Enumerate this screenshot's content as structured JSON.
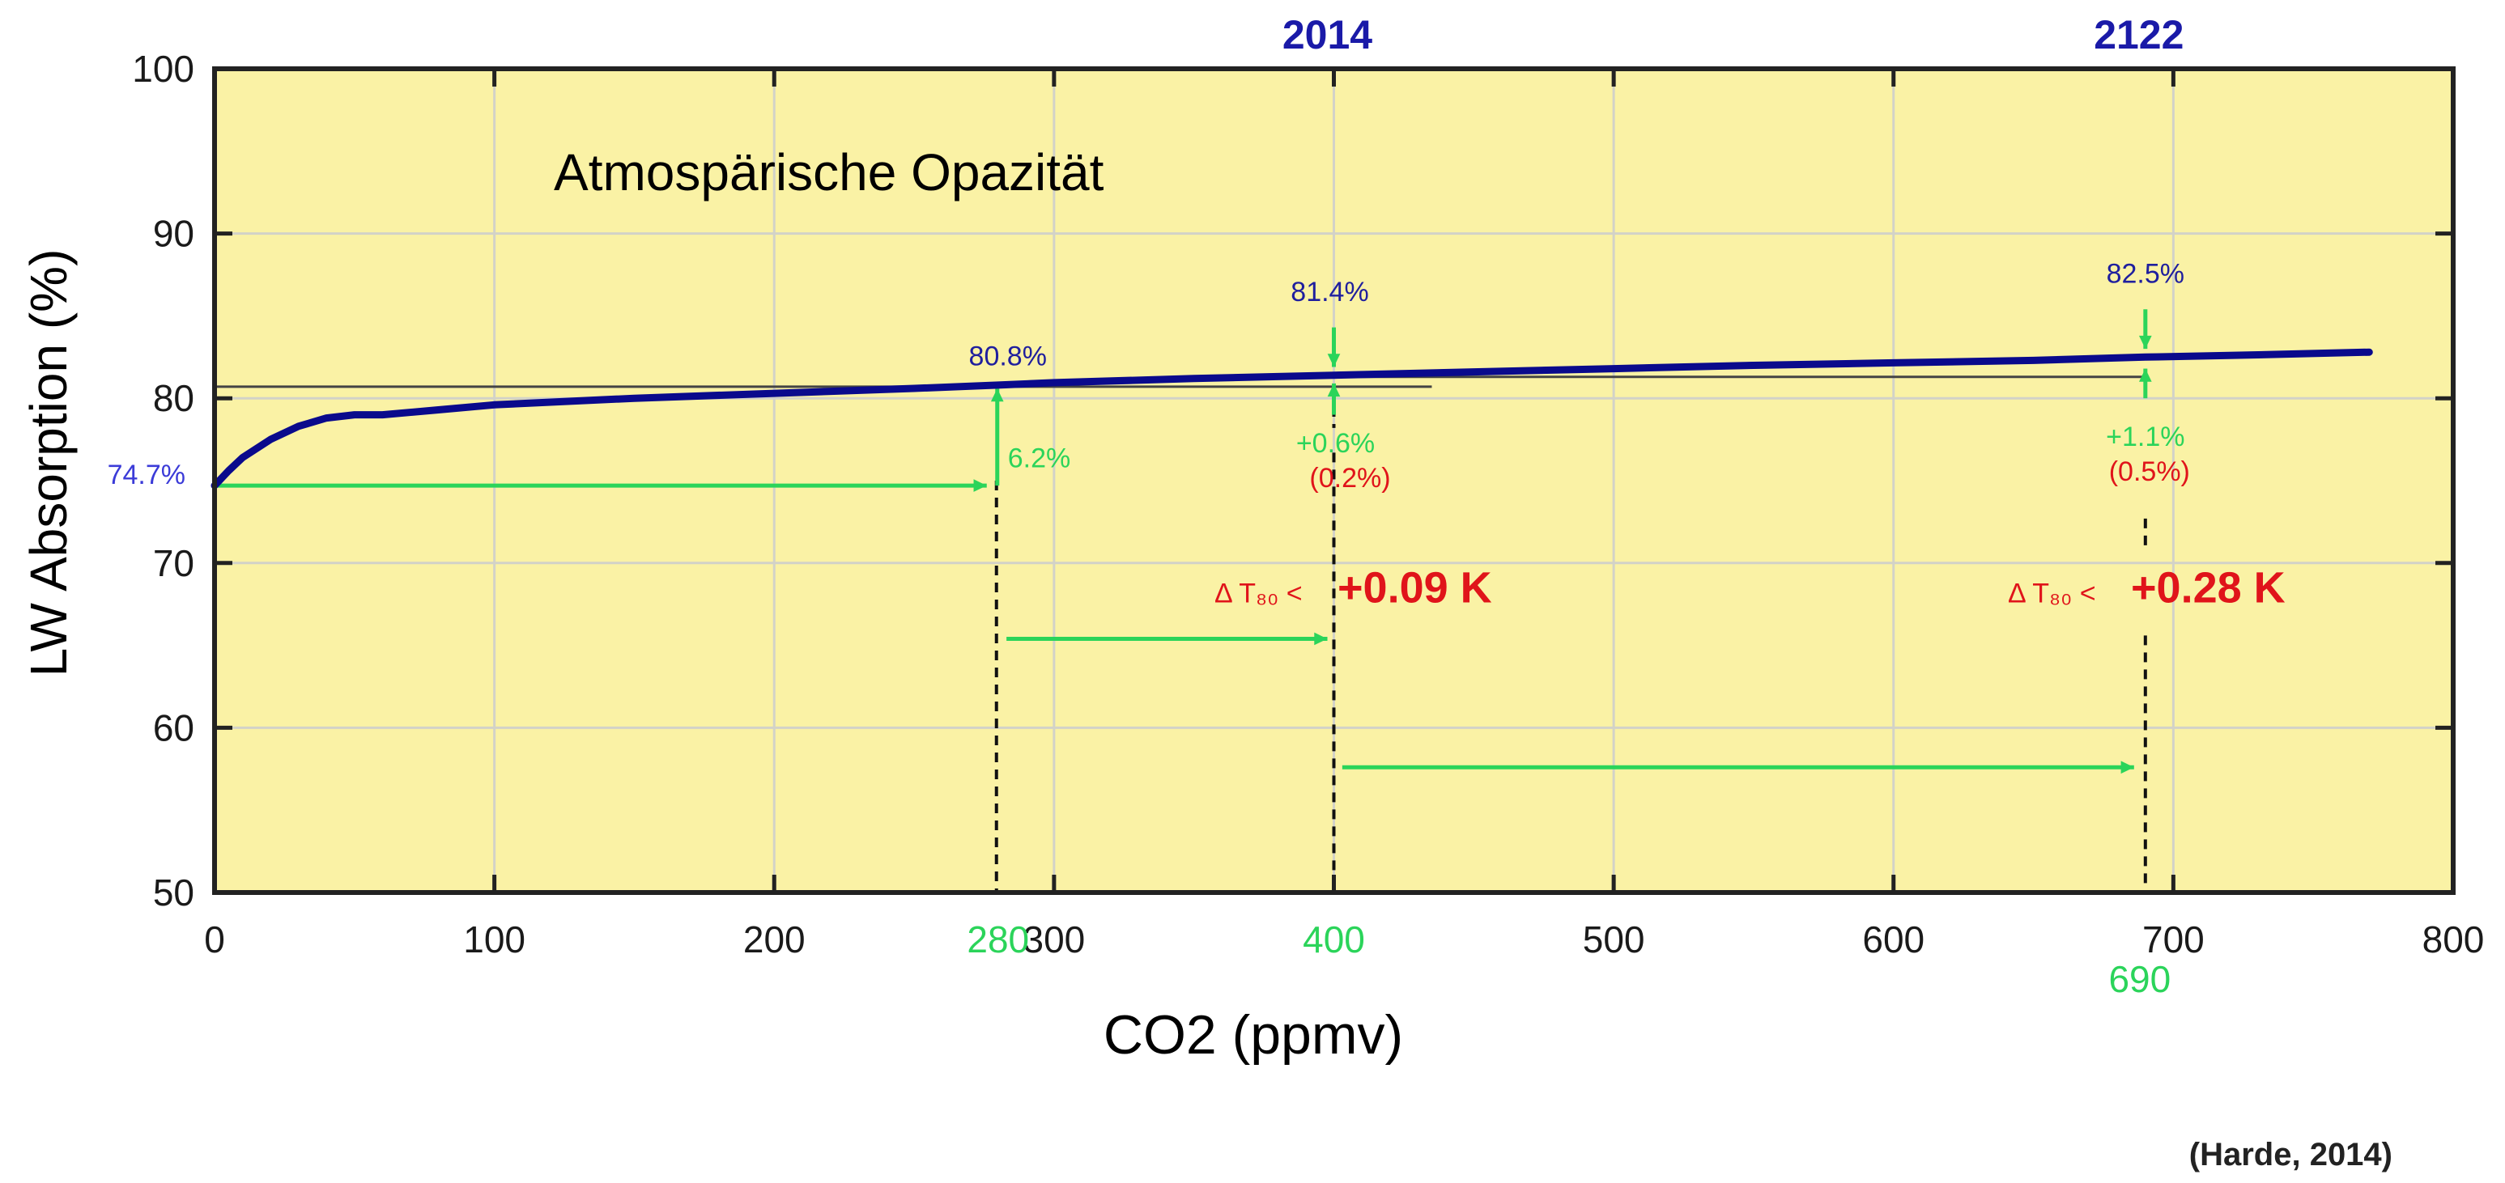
{
  "chart_data": {
    "type": "line",
    "title": "Atmospärische Opazität",
    "xlabel": "CO2 (ppmv)",
    "ylabel": "LW Absorption (%)",
    "xlim": [
      0,
      800
    ],
    "ylim": [
      50,
      100
    ],
    "x_ticks": [
      "0",
      "100",
      "200",
      "300",
      "400",
      "500",
      "600",
      "700",
      "800"
    ],
    "x_tick_values": [
      0,
      100,
      200,
      300,
      400,
      500,
      600,
      700,
      800
    ],
    "y_ticks": [
      "50",
      "60",
      "70",
      "80",
      "90",
      "100"
    ],
    "y_tick_values": [
      50,
      60,
      70,
      80,
      90,
      100
    ],
    "grid": true,
    "background_color": "#faf2a5",
    "line_color": "#0a0a8c",
    "series": [
      {
        "x": [
          0,
          5,
          10,
          20,
          30,
          40,
          50,
          60,
          80,
          100,
          150,
          200,
          250,
          280,
          300,
          350,
          400,
          450,
          500,
          550,
          600,
          650,
          690,
          720,
          770
        ],
        "y": [
          74.7,
          75.6,
          76.4,
          77.5,
          78.3,
          78.8,
          79.0,
          79.0,
          79.3,
          79.6,
          80.0,
          80.3,
          80.6,
          80.8,
          80.95,
          81.2,
          81.4,
          81.6,
          81.8,
          82.0,
          82.15,
          82.3,
          82.5,
          82.6,
          82.8
        ]
      }
    ],
    "reference_lines": [
      {
        "x": [
          0,
          435
        ],
        "y": [
          80.8,
          80.8
        ]
      },
      {
        "x": [
          690,
          690
        ],
        "y": [
          81.4,
          81.4
        ]
      }
    ],
    "marker_years": [
      {
        "label": "2014",
        "x": 400
      },
      {
        "label": "2122",
        "x": 690
      }
    ],
    "highlight_x": [
      {
        "label": "280",
        "x": 280
      },
      {
        "label": "400",
        "x": 400
      },
      {
        "label": "690",
        "x": 690
      }
    ],
    "annotations": {
      "start": {
        "text": "74.7%",
        "x": 0,
        "y": 74.7
      },
      "p280": {
        "text": "80.8%",
        "x": 280,
        "y": 80.8
      },
      "rise280": {
        "text": "6.2%",
        "x": 280,
        "y": 78
      },
      "p400": {
        "text": "81.4%",
        "x": 400,
        "y": 81.4
      },
      "rise400": {
        "text": "+0.6%",
        "sub": "(0.2%)"
      },
      "p690": {
        "text": "82.5%",
        "x": 690,
        "y": 82.5
      },
      "rise690": {
        "text": "+1.1%",
        "sub": "(0.5%)"
      },
      "dt400": {
        "prefix": "Δ T₈₀ <",
        "value": "+0.09 K"
      },
      "dt690": {
        "prefix": "Δ T₈₀ <",
        "value": "+0.28 K"
      }
    },
    "source": "(Harde, 2014)"
  }
}
